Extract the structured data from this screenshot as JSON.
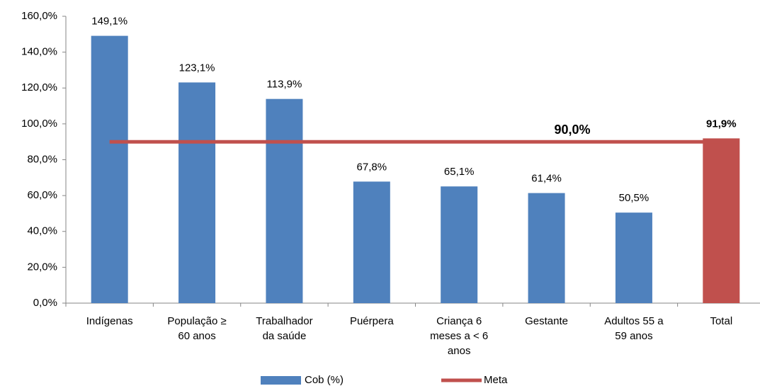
{
  "chart_data": {
    "type": "bar",
    "categories": [
      [
        "Indígenas"
      ],
      [
        "População ≥",
        "60 anos"
      ],
      [
        "Trabalhador",
        "da saúde"
      ],
      [
        "Puérpera"
      ],
      [
        "Criança 6",
        "meses a < 6",
        "anos"
      ],
      [
        "Gestante"
      ],
      [
        "Adultos 55 a",
        "59 anos"
      ],
      [
        "Total"
      ]
    ],
    "series": [
      {
        "name": "Cob (%)",
        "color": "#4f81bd",
        "colors": [
          "#4f81bd",
          "#4f81bd",
          "#4f81bd",
          "#4f81bd",
          "#4f81bd",
          "#4f81bd",
          "#4f81bd",
          "#c0504d"
        ],
        "values": [
          149.1,
          123.1,
          113.9,
          67.8,
          65.1,
          61.4,
          50.5,
          91.9
        ],
        "value_labels": [
          "149,1%",
          "123,1%",
          "113,9%",
          "67,8%",
          "65,1%",
          "61,4%",
          "50,5%",
          "91,9%"
        ]
      },
      {
        "name": "Meta",
        "type": "line",
        "color": "#c0504d",
        "values": [
          90,
          90,
          90,
          90,
          90,
          90,
          90,
          90
        ],
        "value_label": "90,0%"
      }
    ],
    "ylim": [
      0,
      160
    ],
    "yticks": [
      {
        "value": 0,
        "label": "0,0%"
      },
      {
        "value": 20,
        "label": "20,0%"
      },
      {
        "value": 40,
        "label": "40,0%"
      },
      {
        "value": 60,
        "label": "60,0%"
      },
      {
        "value": 80,
        "label": "80,0%"
      },
      {
        "value": 100,
        "label": "100,0%"
      },
      {
        "value": 120,
        "label": "120,0%"
      },
      {
        "value": 140,
        "label": "140,0%"
      },
      {
        "value": 160,
        "label": "160,0%"
      }
    ],
    "legend": "bottom"
  }
}
